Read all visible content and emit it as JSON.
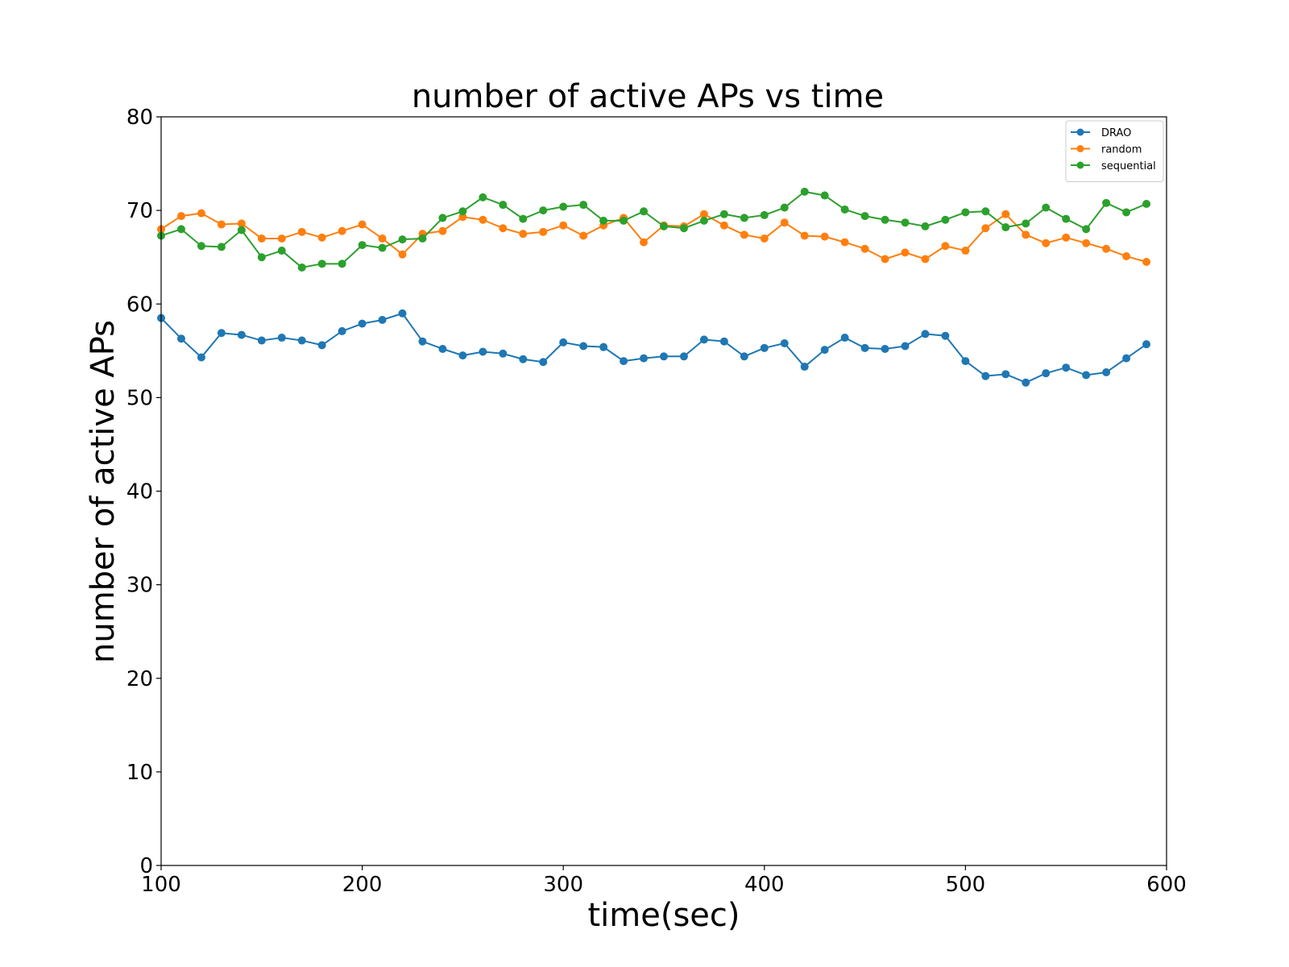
{
  "chart_data": {
    "type": "line",
    "title": "number of active APs vs time",
    "xlabel": "time(sec)",
    "ylabel": "number of active APs",
    "xlim": [
      100,
      600
    ],
    "ylim": [
      0,
      80
    ],
    "xticks": [
      100,
      200,
      300,
      400,
      500,
      600
    ],
    "yticks": [
      0,
      10,
      20,
      30,
      40,
      50,
      60,
      70,
      80
    ],
    "xtick_labels": [
      "100",
      "200",
      "300",
      "400",
      "500",
      "600"
    ],
    "ytick_labels": [
      "0",
      "10",
      "20",
      "30",
      "40",
      "50",
      "60",
      "70",
      "80"
    ],
    "grid": false,
    "legend_position": "top-right",
    "x": [
      100,
      110,
      120,
      130,
      140,
      150,
      160,
      170,
      180,
      190,
      200,
      210,
      220,
      230,
      240,
      250,
      260,
      270,
      280,
      290,
      300,
      310,
      320,
      330,
      340,
      350,
      360,
      370,
      380,
      390,
      400,
      410,
      420,
      430,
      440,
      450,
      460,
      470,
      480,
      490,
      500,
      510,
      520,
      530,
      540,
      550,
      560,
      570,
      580,
      590
    ],
    "series": [
      {
        "name": "DRAO",
        "color": "#1f77b4",
        "values": [
          58.5,
          56.3,
          54.3,
          56.9,
          56.7,
          56.1,
          56.4,
          56.1,
          55.6,
          57.1,
          57.9,
          58.3,
          59.0,
          56.0,
          55.2,
          54.5,
          54.9,
          54.7,
          54.1,
          53.8,
          55.9,
          55.5,
          55.4,
          53.9,
          54.2,
          54.4,
          54.4,
          56.2,
          56.0,
          54.4,
          55.3,
          55.8,
          53.3,
          55.1,
          56.4,
          55.3,
          55.2,
          55.5,
          56.8,
          56.6,
          53.9,
          52.3,
          52.5,
          51.6,
          52.6,
          53.2,
          52.4,
          52.7,
          54.2,
          55.7
        ]
      },
      {
        "name": "random",
        "color": "#ff7f0e",
        "values": [
          68.0,
          69.4,
          69.7,
          68.5,
          68.6,
          67.0,
          67.0,
          67.7,
          67.1,
          67.8,
          68.5,
          67.0,
          65.3,
          67.5,
          67.8,
          69.3,
          69.0,
          68.1,
          67.5,
          67.7,
          68.4,
          67.3,
          68.4,
          69.2,
          66.6,
          68.4,
          68.3,
          69.6,
          68.4,
          67.4,
          67.0,
          68.7,
          67.3,
          67.2,
          66.6,
          65.9,
          64.8,
          65.5,
          64.8,
          66.2,
          65.7,
          68.1,
          69.6,
          67.4,
          66.5,
          67.1,
          66.5,
          65.9,
          65.1,
          64.5
        ]
      },
      {
        "name": "sequential",
        "color": "#2ca02c",
        "values": [
          67.3,
          68.0,
          66.2,
          66.1,
          67.9,
          65.0,
          65.7,
          63.9,
          64.3,
          64.3,
          66.3,
          66.0,
          66.9,
          67.0,
          69.2,
          69.9,
          71.4,
          70.6,
          69.1,
          70.0,
          70.4,
          70.6,
          68.9,
          68.9,
          69.9,
          68.3,
          68.1,
          68.9,
          69.6,
          69.2,
          69.5,
          70.3,
          72.0,
          71.6,
          70.1,
          69.4,
          69.0,
          68.7,
          68.3,
          69.0,
          69.8,
          69.9,
          68.2,
          68.6,
          70.3,
          69.1,
          68.0,
          70.8,
          69.8,
          70.7
        ]
      }
    ]
  }
}
